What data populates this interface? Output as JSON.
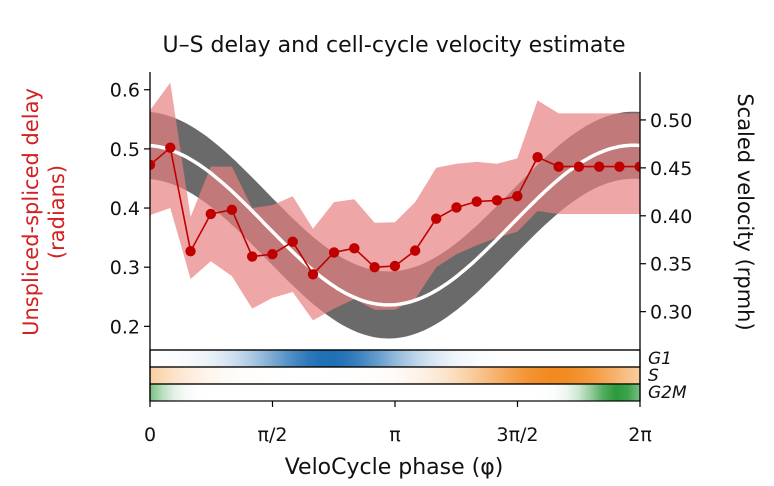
{
  "chart_data": {
    "type": "line",
    "title": "U–S delay and cell-cycle velocity estimate",
    "xlabel": "VeloCycle phase (φ)",
    "ylabel_left": "Unspliced-spliced delay\n(radians)",
    "ylabel_right": "Scaled velocity (rpmh)",
    "xlim": [
      0,
      6.2832
    ],
    "x_ticks": [
      {
        "value": 0,
        "label": "0"
      },
      {
        "value": 1.5708,
        "label": "π/2"
      },
      {
        "value": 3.1416,
        "label": "π"
      },
      {
        "value": 4.7124,
        "label": "3π/2"
      },
      {
        "value": 6.2832,
        "label": "2π"
      }
    ],
    "ylim_left": [
      0.16,
      0.63
    ],
    "y_ticks_left": [
      0.2,
      0.3,
      0.4,
      0.5,
      0.6
    ],
    "ylim_right": [
      0.26,
      0.55
    ],
    "y_ticks_right": [
      0.3,
      0.35,
      0.4,
      0.45,
      0.5
    ],
    "colors": {
      "delay": "#c00000",
      "delay_band": "#e88080",
      "velocity_band": "#5a5a5a",
      "velocity_mean": "#ffffff",
      "G1": "#1f6fb5",
      "S": "#f28a20",
      "G2M": "#2a9a3a"
    },
    "series": [
      {
        "name": "Unspliced-spliced delay",
        "axis": "left",
        "x": [
          0.0,
          0.26,
          0.52,
          0.78,
          1.05,
          1.31,
          1.57,
          1.83,
          2.09,
          2.36,
          2.62,
          2.88,
          3.14,
          3.4,
          3.67,
          3.93,
          4.19,
          4.45,
          4.71,
          4.97,
          5.24,
          5.5,
          5.76,
          6.02,
          6.28
        ],
        "y": [
          0.473,
          0.502,
          0.327,
          0.39,
          0.397,
          0.318,
          0.322,
          0.343,
          0.288,
          0.325,
          0.332,
          0.3,
          0.302,
          0.328,
          0.382,
          0.401,
          0.411,
          0.413,
          0.42,
          0.486,
          0.47,
          0.47,
          0.47,
          0.47,
          0.47
        ],
        "y_low": [
          0.388,
          0.4,
          0.28,
          0.31,
          0.285,
          0.23,
          0.248,
          0.258,
          0.21,
          0.23,
          0.246,
          0.228,
          0.228,
          0.246,
          0.3,
          0.322,
          0.337,
          0.35,
          0.36,
          0.395,
          0.39,
          0.39,
          0.39,
          0.39,
          0.39
        ],
        "y_high": [
          0.565,
          0.612,
          0.385,
          0.47,
          0.47,
          0.4,
          0.405,
          0.42,
          0.365,
          0.41,
          0.415,
          0.375,
          0.376,
          0.41,
          0.468,
          0.475,
          0.478,
          0.475,
          0.484,
          0.582,
          0.56,
          0.56,
          0.56,
          0.56,
          0.56
        ]
      },
      {
        "name": "Scaled velocity",
        "axis": "right",
        "model": "mean = 0.3903 + 0.0833·cos(φ − 6.2); band half-width 0.035",
        "mean_amplitude": 0.0833,
        "mean_offset": 0.3903,
        "phase_shift": 6.2,
        "band_halfwidth": 0.035
      }
    ],
    "phase_bars": [
      {
        "label": "G1",
        "peak": 2.3,
        "width": 1.2
      },
      {
        "label": "S",
        "peak": 5.2,
        "width": 1.4
      },
      {
        "label": "G2M",
        "peak": 6.0,
        "width": 0.5
      }
    ]
  }
}
